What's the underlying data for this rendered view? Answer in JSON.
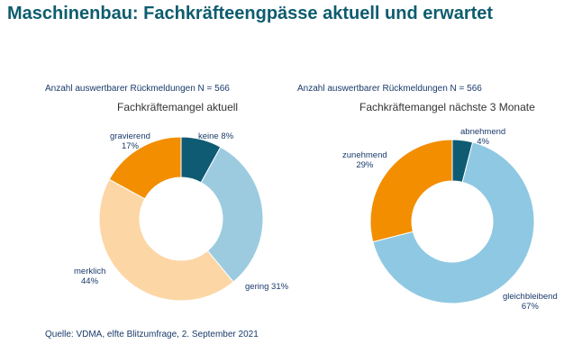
{
  "page_title": "Maschinenbau: Fachkräfteengpässe aktuell und erwartet",
  "source": "Quelle: VDMA, elfte Blitzumfrage, 2. September 2021",
  "chart_data": [
    {
      "type": "pie",
      "variant": "donut",
      "n_label": "Anzahl auswertbarer Rückmeldungen N = 566",
      "title": "Fachkräftemangel aktuell",
      "slices": [
        {
          "name": "keine",
          "value": 8,
          "text": "keine 8%",
          "color": "#0f5b73"
        },
        {
          "name": "gering",
          "value": 31,
          "text": "gering 31%",
          "color": "#9ccbe0"
        },
        {
          "name": "merklich",
          "value": 44,
          "text": "merklich",
          "text2": "44%",
          "color": "#fdd6a6"
        },
        {
          "name": "gravierend",
          "value": 17,
          "text": "gravierend",
          "text2": "17%",
          "color": "#f28e00"
        }
      ]
    },
    {
      "type": "pie",
      "variant": "donut",
      "n_label": "Anzahl auswertbarer Rückmeldungen N = 566",
      "title": "Fachkräftemangel nächste 3 Monate",
      "slices": [
        {
          "name": "abnehmend",
          "value": 4,
          "text": "abnehmend",
          "text2": "4%",
          "color": "#0f5b73"
        },
        {
          "name": "gleichbleibend",
          "value": 67,
          "text": "gleichbleibend",
          "text2": "67%",
          "color": "#8fc8e2"
        },
        {
          "name": "zunehmend",
          "value": 29,
          "text": "zunehmend",
          "text2": "29%",
          "color": "#f28e00"
        }
      ]
    }
  ]
}
